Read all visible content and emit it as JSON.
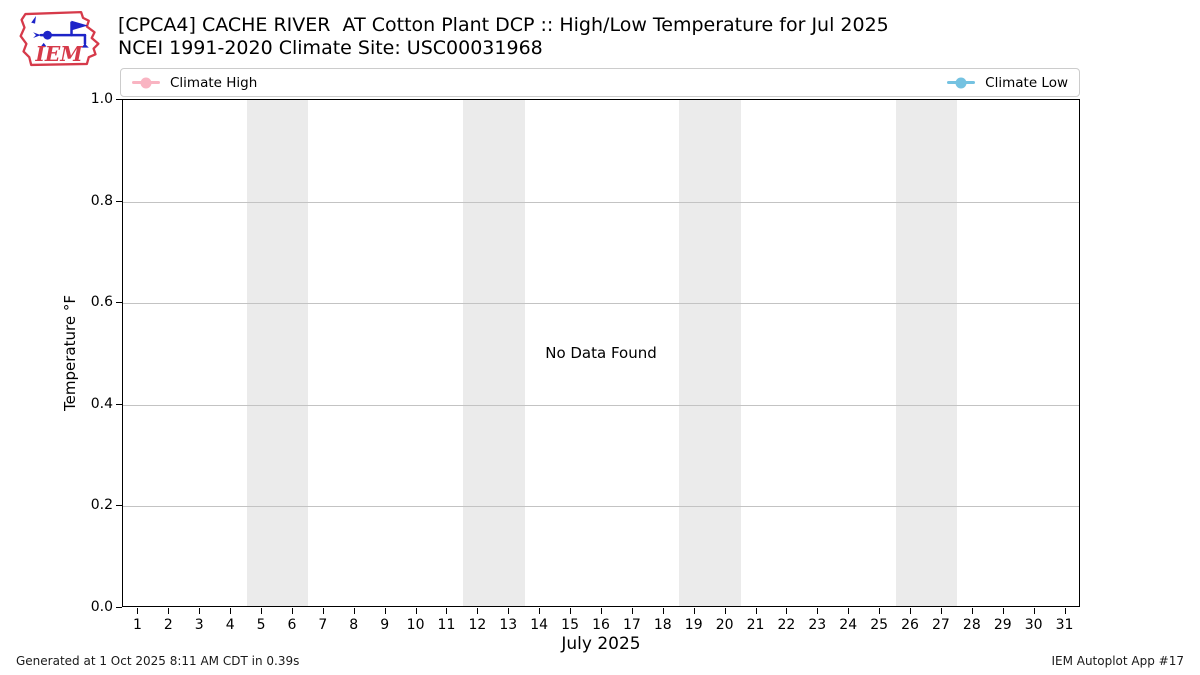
{
  "header": {
    "logo_text": "IEM",
    "title_line1": "[CPCA4] CACHE RIVER  AT Cotton Plant DCP :: High/Low Temperature for Jul 2025",
    "title_line2": "NCEI 1991-2020 Climate Site: USC00031968"
  },
  "legend": {
    "items": [
      {
        "label": "Climate High",
        "color": "#f9b4c2"
      },
      {
        "label": "Climate Low",
        "color": "#74c2e1"
      }
    ]
  },
  "chart_data": {
    "type": "line",
    "title": "[CPCA4] CACHE RIVER  AT Cotton Plant DCP :: High/Low Temperature for Jul 2025",
    "subtitle": "NCEI 1991-2020 Climate Site: USC00031968",
    "xlabel": "July 2025",
    "ylabel": "Temperature °F",
    "ylim": [
      0.0,
      1.0
    ],
    "yticks": [
      "0.0",
      "0.2",
      "0.4",
      "0.6",
      "0.8",
      "1.0"
    ],
    "xlim": [
      0.5,
      31.5
    ],
    "xticks": [
      1,
      2,
      3,
      4,
      5,
      6,
      7,
      8,
      9,
      10,
      11,
      12,
      13,
      14,
      15,
      16,
      17,
      18,
      19,
      20,
      21,
      22,
      23,
      24,
      25,
      26,
      27,
      28,
      29,
      30,
      31
    ],
    "series": [
      {
        "name": "Climate High",
        "color": "#f9b4c2",
        "values": []
      },
      {
        "name": "Climate Low",
        "color": "#74c2e1",
        "values": []
      }
    ],
    "no_data_message": "No Data Found",
    "weekend_bands": [
      [
        4.5,
        6.5
      ],
      [
        11.5,
        13.5
      ],
      [
        18.5,
        20.5
      ],
      [
        25.5,
        27.5
      ]
    ],
    "band_color": "#ebebeb",
    "grid": "horizontal",
    "legend_position": "top-expanded"
  },
  "footer": {
    "left": "Generated at 1 Oct 2025 8:11 AM CDT in 0.39s",
    "right": "IEM Autoplot App #17"
  }
}
